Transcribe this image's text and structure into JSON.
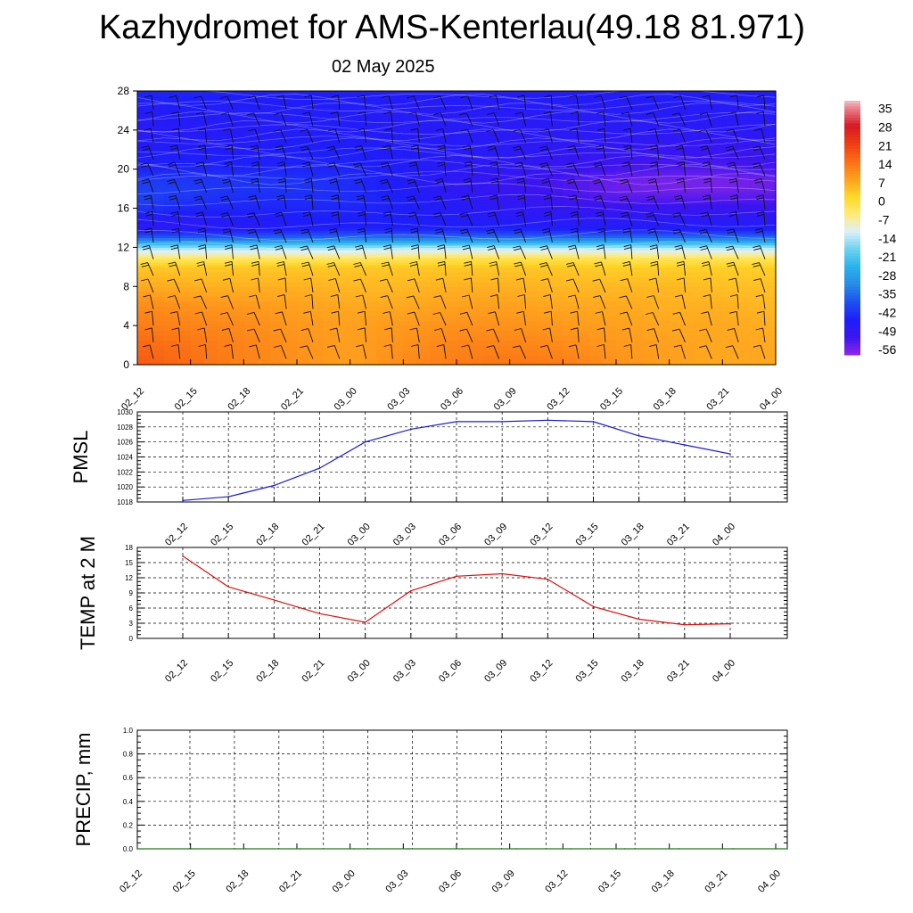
{
  "title": "Kazhydromet for AMS-Kenterlau(49.18 81.971)",
  "subtitle": "02 May 2025",
  "time_labels": [
    "02_12",
    "02_15",
    "02_18",
    "02_21",
    "03_00",
    "03_03",
    "03_06",
    "03_09",
    "03_12",
    "03_15",
    "03_18",
    "03_21",
    "04_00"
  ],
  "chart_data": [
    {
      "type": "heatmap",
      "name": "temperature-cross-section",
      "ylabel": "",
      "y_ticks": [
        0,
        4,
        8,
        12,
        16,
        20,
        24,
        28
      ],
      "ylim": [
        0,
        28
      ],
      "colorbar": {
        "labels": [
          "35",
          "28",
          "21",
          "14",
          "7",
          "0",
          "-7",
          "-14",
          "-21",
          "-28",
          "-35",
          "-42",
          "-49",
          "-56"
        ],
        "range": [
          -63,
          38
        ]
      },
      "contour_temps": {
        "levels": [
          0,
          2,
          4,
          6,
          8,
          10,
          11,
          12,
          13,
          14,
          15,
          16,
          17,
          18,
          19,
          20,
          22,
          24,
          26,
          28
        ],
        "values": [
          [
            17,
            15,
            12,
            10,
            6,
            2,
            -6,
            -18,
            -40,
            -52,
            -50,
            -46,
            -44,
            -44,
            -45,
            -48,
            -50,
            -52,
            -50,
            -48
          ],
          [
            14,
            13,
            11,
            9,
            5,
            2,
            -6,
            -18,
            -40,
            -52,
            -51,
            -48,
            -46,
            -45,
            -46,
            -48,
            -50,
            -51,
            -50,
            -48
          ],
          [
            11,
            11,
            10,
            8,
            5,
            2,
            -6,
            -18,
            -40,
            -51,
            -50,
            -48,
            -47,
            -46,
            -46,
            -48,
            -50,
            -51,
            -50,
            -49
          ],
          [
            9,
            9,
            8,
            7,
            5,
            2,
            -6,
            -18,
            -39,
            -50,
            -49,
            -48,
            -47,
            -46,
            -46,
            -48,
            -49,
            -50,
            -50,
            -49
          ],
          [
            7,
            7,
            7,
            6,
            4,
            2,
            -6,
            -18,
            -38,
            -49,
            -49,
            -48,
            -47,
            -47,
            -47,
            -48,
            -49,
            -50,
            -50,
            -49
          ],
          [
            10,
            9,
            8,
            6,
            4,
            2,
            -5,
            -17,
            -38,
            -49,
            -49,
            -49,
            -49,
            -50,
            -50,
            -50,
            -50,
            -51,
            -51,
            -50
          ],
          [
            12,
            11,
            9,
            7,
            5,
            2,
            -4,
            -17,
            -38,
            -49,
            -50,
            -51,
            -52,
            -53,
            -53,
            -52,
            -51,
            -51,
            -51,
            -50
          ],
          [
            13,
            11,
            9,
            7,
            5,
            2,
            -4,
            -17,
            -38,
            -49,
            -51,
            -53,
            -54,
            -55,
            -55,
            -53,
            -52,
            -52,
            -51,
            -50
          ],
          [
            12,
            10,
            8,
            6,
            4,
            2,
            -4,
            -17,
            -38,
            -50,
            -52,
            -54,
            -56,
            -57,
            -57,
            -55,
            -53,
            -52,
            -51,
            -50
          ],
          [
            9,
            8,
            7,
            6,
            4,
            1,
            -5,
            -17,
            -38,
            -50,
            -52,
            -55,
            -58,
            -60,
            -60,
            -57,
            -54,
            -52,
            -51,
            -50
          ],
          [
            7,
            7,
            6,
            5,
            4,
            1,
            -5,
            -17,
            -38,
            -50,
            -52,
            -55,
            -58,
            -61,
            -61,
            -58,
            -55,
            -52,
            -51,
            -50
          ],
          [
            6,
            6,
            6,
            5,
            3,
            1,
            -5,
            -17,
            -38,
            -50,
            -52,
            -55,
            -58,
            -61,
            -61,
            -58,
            -55,
            -52,
            -51,
            -50
          ],
          [
            6,
            6,
            5,
            4,
            3,
            1,
            -5,
            -17,
            -38,
            -50,
            -52,
            -55,
            -58,
            -60,
            -60,
            -57,
            -54,
            -52,
            -51,
            -50
          ]
        ]
      }
    },
    {
      "type": "line",
      "name": "pmsl",
      "ylabel": "PMSL",
      "ylim": [
        1018,
        1030
      ],
      "y_ticks": [
        1018,
        1020,
        1022,
        1024,
        1026,
        1028,
        1030
      ],
      "color": "#1a1ad6",
      "values": [
        1018.2,
        1018.7,
        1020.2,
        1022.5,
        1026.0,
        1027.7,
        1028.7,
        1028.7,
        1028.9,
        1028.7,
        1026.8,
        1025.6,
        1024.4
      ]
    },
    {
      "type": "line",
      "name": "temp-2m",
      "ylabel": "TEMP at 2 M",
      "ylim": [
        0,
        18
      ],
      "y_ticks": [
        0,
        3,
        6,
        9,
        12,
        15,
        18
      ],
      "color": "#e01010",
      "values": [
        16.3,
        10.2,
        7.6,
        4.9,
        3.2,
        9.4,
        12.3,
        12.8,
        11.7,
        6.3,
        3.8,
        2.7,
        2.9
      ]
    },
    {
      "type": "line",
      "name": "precip",
      "ylabel": "PRECIP, mm",
      "ylim": [
        0,
        1
      ],
      "y_ticks": [
        "0.0",
        "0.2",
        "0.4",
        "0.6",
        "0.8",
        "1.0"
      ],
      "color": "#1a7a1a",
      "values": [
        0,
        0,
        0,
        0,
        0,
        0,
        0,
        0,
        0,
        0,
        0,
        0,
        0
      ]
    }
  ]
}
